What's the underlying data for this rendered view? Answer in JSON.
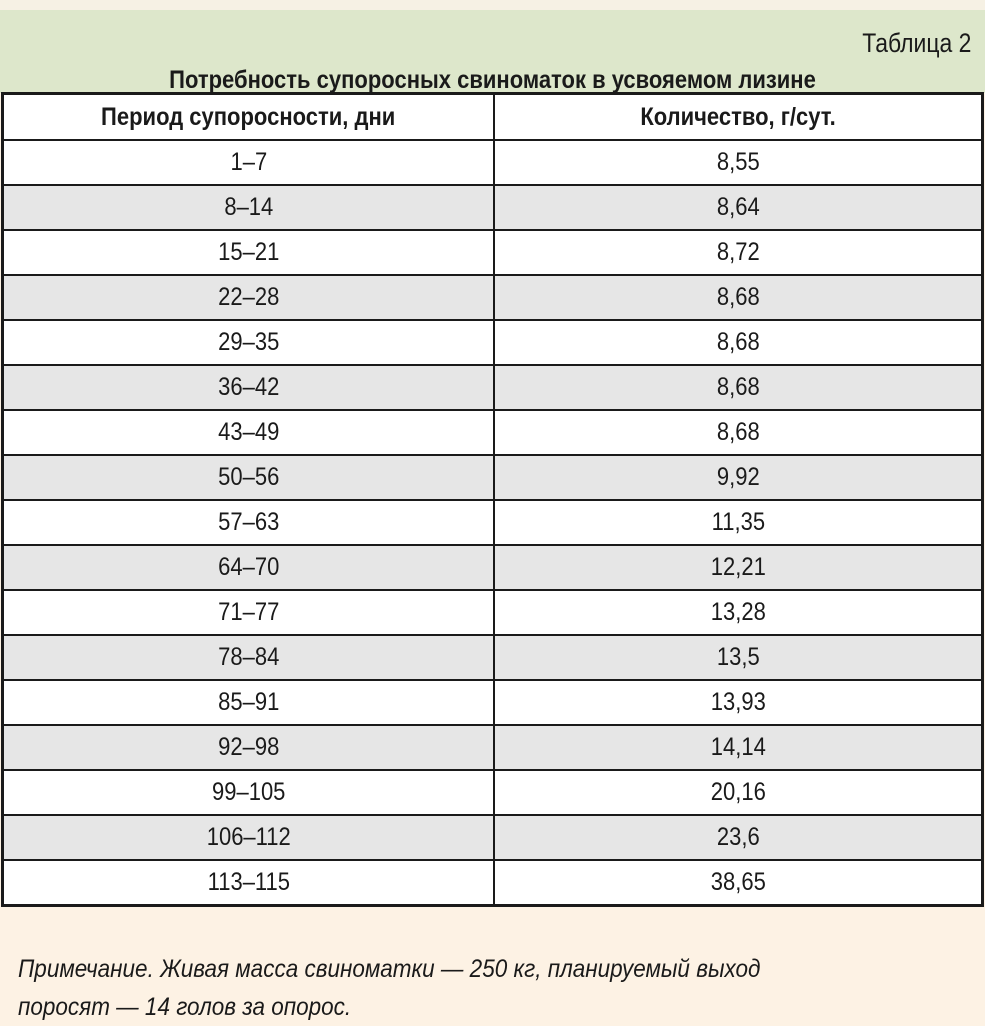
{
  "table_number": "Таблица 2",
  "title": "Потребность супоросных свиноматок в усвояемом лизине",
  "columns": [
    "Период супоросности, дни",
    "Количество, г/сут."
  ],
  "rows": [
    [
      "1–7",
      "8,55"
    ],
    [
      "8–14",
      "8,64"
    ],
    [
      "15–21",
      "8,72"
    ],
    [
      "22–28",
      "8,68"
    ],
    [
      "29–35",
      "8,68"
    ],
    [
      "36–42",
      "8,68"
    ],
    [
      "43–49",
      "8,68"
    ],
    [
      "50–56",
      "9,92"
    ],
    [
      "57–63",
      "11,35"
    ],
    [
      "64–70",
      "12,21"
    ],
    [
      "71–77",
      "13,28"
    ],
    [
      "78–84",
      "13,5"
    ],
    [
      "85–91",
      "13,93"
    ],
    [
      "92–98",
      "14,14"
    ],
    [
      "99–105",
      "20,16"
    ],
    [
      "106–112",
      "23,6"
    ],
    [
      "113–115",
      "38,65"
    ]
  ],
  "note_line1": "Примечание. Живая масса свиноматки — 250 кг, планируемый выход",
  "note_line2": "поросят — 14 голов за опорос."
}
